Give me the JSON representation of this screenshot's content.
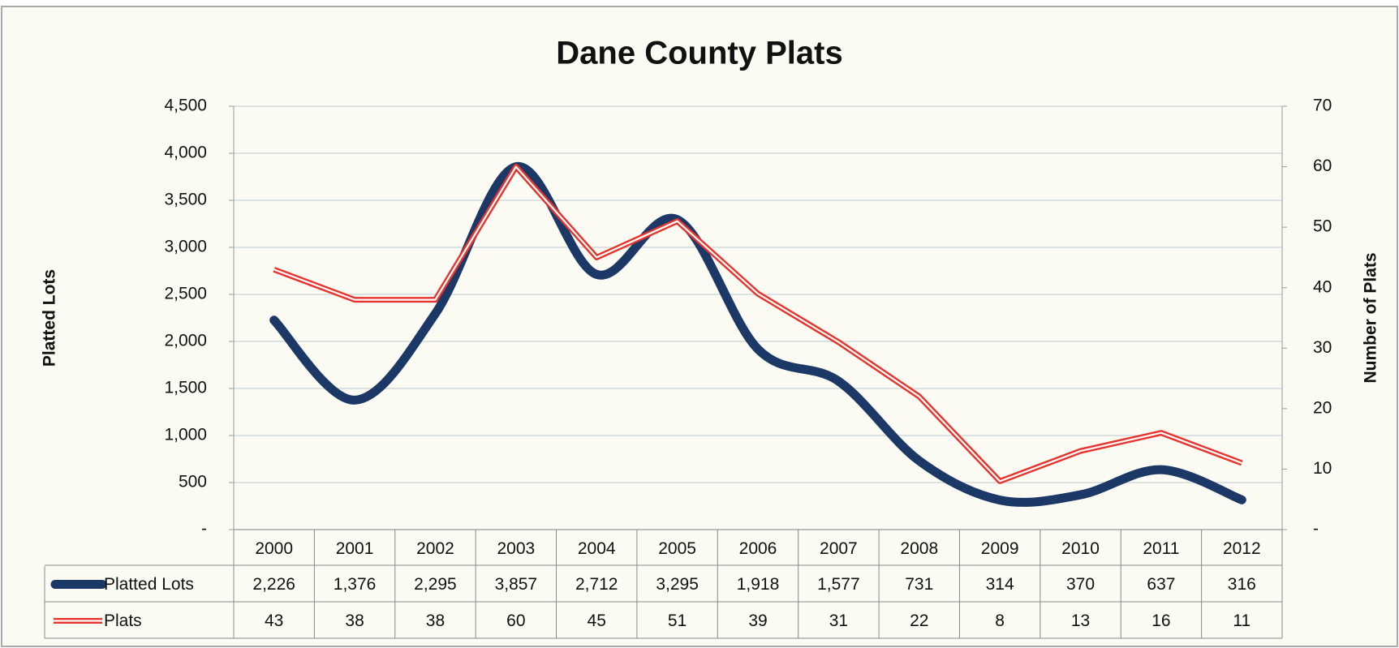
{
  "chart_data": {
    "type": "line",
    "title": "Dane County Plats",
    "y_label": "Platted Lots",
    "y2_label": "Number of Plats",
    "categories": [
      "2000",
      "2001",
      "2002",
      "2003",
      "2004",
      "2005",
      "2006",
      "2007",
      "2008",
      "2009",
      "2010",
      "2011",
      "2012"
    ],
    "series": [
      {
        "name": "Platted Lots",
        "color": "#1c3866",
        "axis": "y",
        "values": [
          2226,
          1376,
          2295,
          3857,
          2712,
          3295,
          1918,
          1577,
          731,
          314,
          370,
          637,
          316
        ],
        "value_labels": [
          "2,226",
          "1,376",
          "2,295",
          "3,857",
          "2,712",
          "3,295",
          "1,918",
          "1,577",
          "731",
          "314",
          "370",
          "637",
          "316"
        ]
      },
      {
        "name": "Plats",
        "color": "#e8332c",
        "axis": "y2",
        "values": [
          43,
          38,
          38,
          60,
          45,
          51,
          39,
          31,
          22,
          8,
          13,
          16,
          11
        ]
      }
    ],
    "ylim": [
      0,
      4500
    ],
    "yticks": [
      {
        "value": 0,
        "label": "-"
      },
      500,
      {
        "value": 1000,
        "label": "1,000"
      },
      {
        "value": 1500,
        "label": "1,500"
      },
      {
        "value": 2000,
        "label": "2,000"
      },
      {
        "value": 2500,
        "label": "2,500"
      },
      {
        "value": 3000,
        "label": "3,000"
      },
      {
        "value": 3500,
        "label": "3,500"
      },
      {
        "value": 4000,
        "label": "4,000"
      },
      {
        "value": 4500,
        "label": "4,500"
      }
    ],
    "y2lim": [
      0,
      70
    ],
    "y2ticks": [
      {
        "value": 0,
        "label": "-"
      },
      10,
      20,
      30,
      40,
      50,
      60,
      70
    ],
    "grid": true,
    "smooth": true
  }
}
